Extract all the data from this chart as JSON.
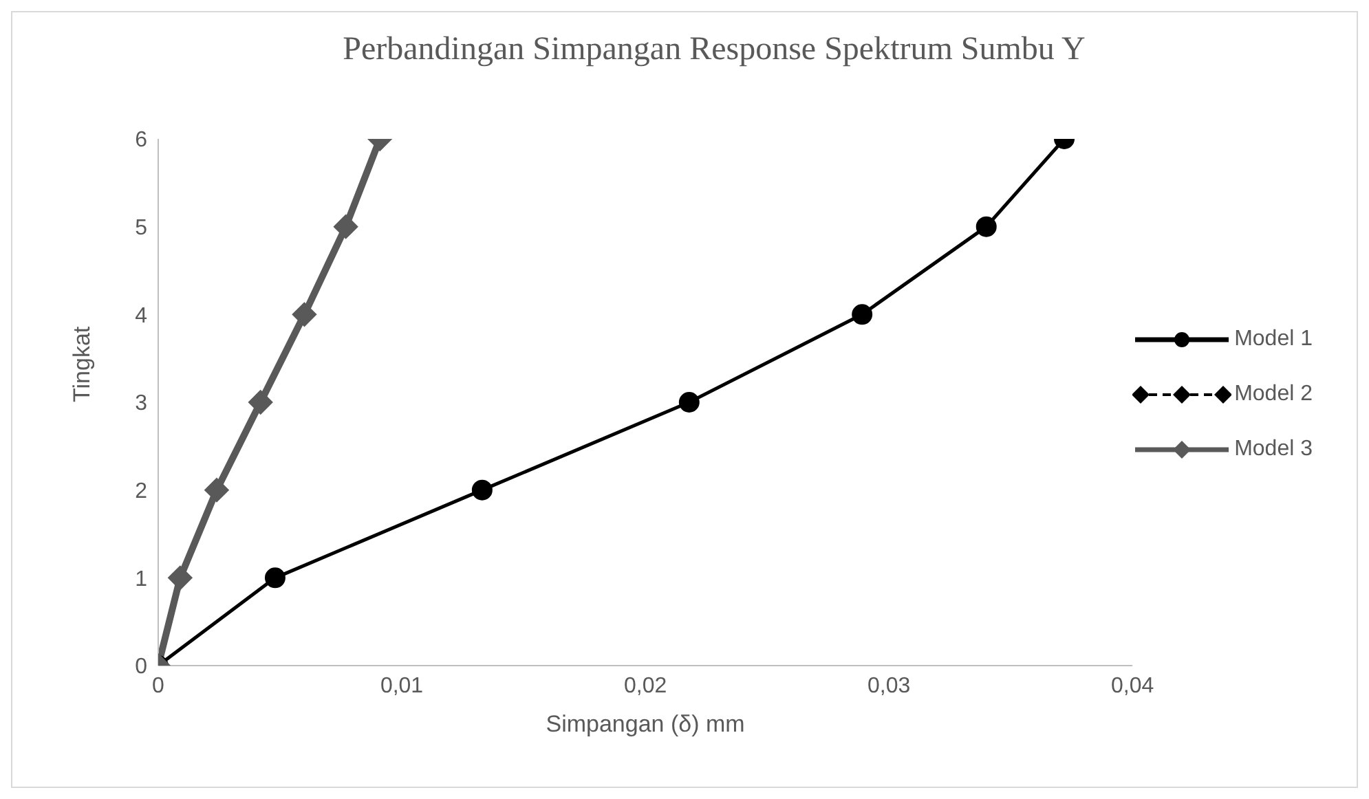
{
  "chart_data": {
    "type": "line",
    "title": "Perbandingan Simpangan Response Spektrum Sumbu Y",
    "xlabel": "Simpangan (δ) mm",
    "ylabel": "Tingkat",
    "x": [
      0,
      0.0048,
      0.0133,
      0.0218,
      0.0289,
      0.034,
      0.0372
    ],
    "series": [
      {
        "name": "Model 1",
        "color": "#000000",
        "marker": "circle",
        "line_style": "solid",
        "values": [
          0,
          1,
          2,
          3,
          4,
          5,
          6
        ]
      },
      {
        "name": "Model 2",
        "color": "#000000",
        "marker": "diamond",
        "line_style": "dashed",
        "values": [
          null,
          null,
          null,
          null,
          null,
          null,
          null
        ]
      },
      {
        "name": "Model 3",
        "color": "#595959",
        "marker": "diamond",
        "line_style": "solid",
        "x": [
          0,
          0.0009,
          0.0024,
          0.0042,
          0.006,
          0.0077,
          0.0091
        ],
        "values": [
          0,
          1,
          2,
          3,
          4,
          5,
          6
        ]
      }
    ],
    "xlim": [
      0,
      0.04
    ],
    "xticks": [
      {
        "value": 0,
        "label": "0"
      },
      {
        "value": 0.01,
        "label": "0,01"
      },
      {
        "value": 0.02,
        "label": "0,02"
      },
      {
        "value": 0.03,
        "label": "0,03"
      },
      {
        "value": 0.04,
        "label": "0,04"
      }
    ],
    "ylim": [
      0,
      6
    ],
    "yticks": [
      0,
      1,
      2,
      3,
      4,
      5,
      6
    ],
    "grid": false,
    "legend": "right"
  }
}
